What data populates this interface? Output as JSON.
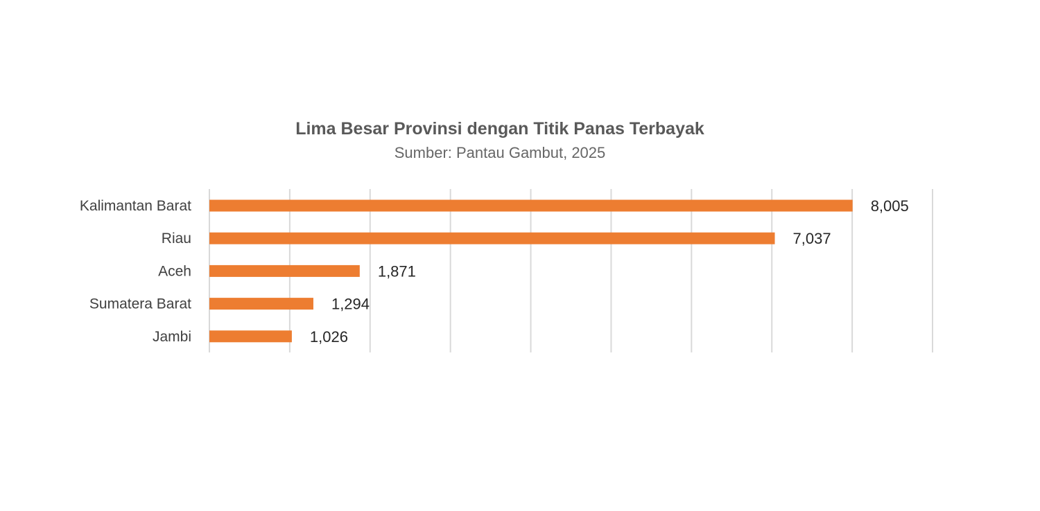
{
  "chart_data": {
    "type": "bar",
    "orientation": "horizontal",
    "title": "Lima Besar Provinsi dengan Titik Panas Terbayak",
    "subtitle": "Sumber: Pantau Gambut, 2025",
    "categories": [
      "Kalimantan Barat",
      "Riau",
      "Aceh",
      "Sumatera Barat",
      "Jambi"
    ],
    "values": [
      8005,
      7037,
      1871,
      1294,
      1026
    ],
    "value_labels": [
      "8,005",
      "7,037",
      "1,871",
      "1,294",
      "1,026"
    ],
    "xlim": [
      0,
      9000
    ],
    "grid_step": 1000,
    "grid": true,
    "axis_tick_labels_shown": false,
    "legend": "none",
    "bar_color": "#ed7d31",
    "gridline_color": "#d9d9d9",
    "title_color": "#595959",
    "label_color": "#404040"
  }
}
